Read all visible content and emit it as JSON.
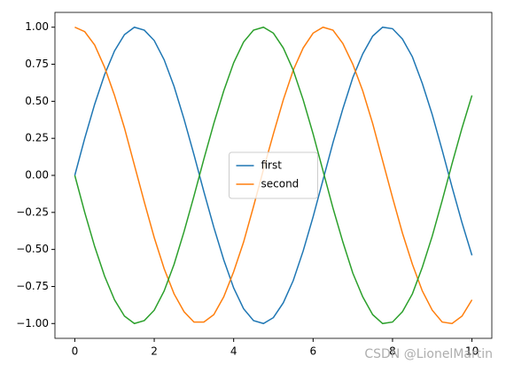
{
  "chart_data": {
    "type": "line",
    "x": [
      0,
      0.25,
      0.5,
      0.75,
      1,
      1.25,
      1.5,
      1.75,
      2,
      2.25,
      2.5,
      2.75,
      3,
      3.25,
      3.5,
      3.75,
      4,
      4.25,
      4.5,
      4.75,
      5,
      5.25,
      5.5,
      5.75,
      6,
      6.25,
      6.5,
      6.75,
      7,
      7.25,
      7.5,
      7.75,
      8,
      8.25,
      8.5,
      8.75,
      9,
      9.25,
      9.5,
      9.75,
      10
    ],
    "series": [
      {
        "name": "first",
        "color": "#1f77b4",
        "values": [
          0,
          0.25,
          0.48,
          0.68,
          0.84,
          0.95,
          1.0,
          0.98,
          0.91,
          0.78,
          0.6,
          0.38,
          0.14,
          -0.11,
          -0.35,
          -0.57,
          -0.76,
          -0.9,
          -0.98,
          -1.0,
          -0.96,
          -0.86,
          -0.71,
          -0.51,
          -0.28,
          -0.03,
          0.22,
          0.45,
          0.66,
          0.82,
          0.94,
          1.0,
          0.99,
          0.92,
          0.8,
          0.62,
          0.41,
          0.17,
          -0.08,
          -0.32,
          -0.54
        ]
      },
      {
        "name": "second",
        "color": "#ff7f0e",
        "values": [
          1.0,
          0.97,
          0.88,
          0.73,
          0.54,
          0.32,
          0.07,
          -0.18,
          -0.42,
          -0.63,
          -0.8,
          -0.92,
          -0.99,
          -0.99,
          -0.94,
          -0.82,
          -0.65,
          -0.45,
          -0.21,
          0.04,
          0.28,
          0.51,
          0.71,
          0.86,
          0.96,
          1.0,
          0.98,
          0.89,
          0.75,
          0.57,
          0.35,
          0.1,
          -0.15,
          -0.39,
          -0.6,
          -0.78,
          -0.91,
          -0.99,
          -1.0,
          -0.95,
          -0.84
        ]
      },
      {
        "color": "#2ca02c",
        "values": [
          0,
          -0.25,
          -0.48,
          -0.68,
          -0.84,
          -0.95,
          -1.0,
          -0.98,
          -0.91,
          -0.78,
          -0.6,
          -0.38,
          -0.14,
          0.11,
          0.35,
          0.57,
          0.76,
          0.9,
          0.98,
          1.0,
          0.96,
          0.86,
          0.71,
          0.51,
          0.28,
          0.03,
          -0.22,
          -0.45,
          -0.66,
          -0.82,
          -0.94,
          -1.0,
          -0.99,
          -0.92,
          -0.8,
          -0.62,
          -0.41,
          -0.17,
          0.08,
          0.32,
          0.54
        ]
      }
    ],
    "xlim": [
      -0.5,
      10.5
    ],
    "xticks": [
      0,
      2,
      4,
      6,
      8,
      10
    ],
    "ylim": [
      -1.1,
      1.1
    ],
    "yticks": [
      {
        "value": -1,
        "label": "−1.00"
      },
      {
        "value": -0.75,
        "label": "−0.75"
      },
      {
        "value": -0.5,
        "label": "−0.50"
      },
      {
        "value": -0.25,
        "label": "−0.25"
      },
      {
        "value": 0,
        "label": "0.00"
      },
      {
        "value": 0.25,
        "label": "0.25"
      },
      {
        "value": 0.5,
        "label": "0.50"
      },
      {
        "value": 0.75,
        "label": "0.75"
      },
      {
        "value": 1,
        "label": "1.00"
      }
    ],
    "grid": false,
    "legend": "center",
    "watermark": "CSDN @LionelMartin"
  }
}
